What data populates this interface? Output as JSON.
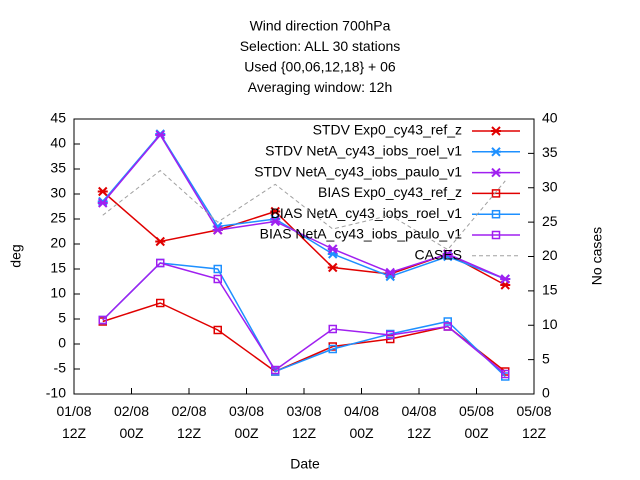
{
  "chart_data": {
    "type": "line",
    "title": [
      "Wind direction 700hPa",
      "Selection: ALL      30 stations",
      "Used {00,06,12,18} + 06",
      "Averaging window: 12h"
    ],
    "xlabel": "Date",
    "ylabel": "deg",
    "y2label": "No cases",
    "xlim": [
      0,
      96
    ],
    "xticks": [
      {
        "value": 0,
        "label": "01/08\n12Z"
      },
      {
        "value": 12,
        "label": "02/08\n00Z"
      },
      {
        "value": 24,
        "label": "02/08\n12Z"
      },
      {
        "value": 36,
        "label": "03/08\n00Z"
      },
      {
        "value": 48,
        "label": "03/08\n12Z"
      },
      {
        "value": 60,
        "label": "04/08\n00Z"
      },
      {
        "value": 72,
        "label": "04/08\n12Z"
      },
      {
        "value": 84,
        "label": "05/08\n00Z"
      },
      {
        "value": 96,
        "label": "05/08\n12Z"
      }
    ],
    "ylim": [
      -10,
      45
    ],
    "yticks": [
      -10,
      -5,
      0,
      5,
      10,
      15,
      20,
      25,
      30,
      35,
      40,
      45
    ],
    "y2lim": [
      0,
      40
    ],
    "y2ticks": [
      0,
      5,
      10,
      15,
      20,
      25,
      30,
      35,
      40
    ],
    "x": [
      6,
      18,
      30,
      42,
      54,
      66,
      78,
      90
    ],
    "series": [
      {
        "name": "STDV Exp0_cy43_ref_z",
        "color": "#e00000",
        "marker": "star",
        "values": [
          30.5,
          20.5,
          22.8,
          26.5,
          15.3,
          14,
          18,
          11.8
        ]
      },
      {
        "name": "STDV NetA_cy43_iobs_roel_v1",
        "color": "#1e90ff",
        "marker": "star",
        "values": [
          28.5,
          42,
          23.5,
          25,
          18,
          13.5,
          17.5,
          13
        ]
      },
      {
        "name": "STDV NetA_cy43_iobs_paulo_v1",
        "color": "#a020f0",
        "marker": "star",
        "values": [
          28.2,
          41.8,
          22.8,
          24.5,
          19,
          14.3,
          18,
          13
        ]
      },
      {
        "name": "BIAS Exp0_cy43_ref_z",
        "color": "#e00000",
        "marker": "square",
        "values": [
          4.5,
          8.2,
          2.8,
          -5.5,
          -0.5,
          1,
          3.5,
          -5.5
        ]
      },
      {
        "name": "BIAS NetA_cy43_iobs_roel_v1",
        "color": "#1e90ff",
        "marker": "square",
        "values": [
          4.8,
          16.2,
          15,
          -5.5,
          -1,
          2,
          4.5,
          -6.5
        ]
      },
      {
        "name": "BIAS NetA_cy43_iobs_paulo_v1",
        "color": "#a020f0",
        "marker": "square",
        "values": [
          4.8,
          16.2,
          13,
          -5.2,
          3,
          1.8,
          3.5,
          -6
        ]
      },
      {
        "name": "CASES",
        "color": "#a0a0a0",
        "marker": "none",
        "dashed": true,
        "axis": "y2",
        "values": [
          26,
          32.5,
          25,
          30.5,
          24,
          26,
          21,
          31
        ]
      }
    ]
  }
}
